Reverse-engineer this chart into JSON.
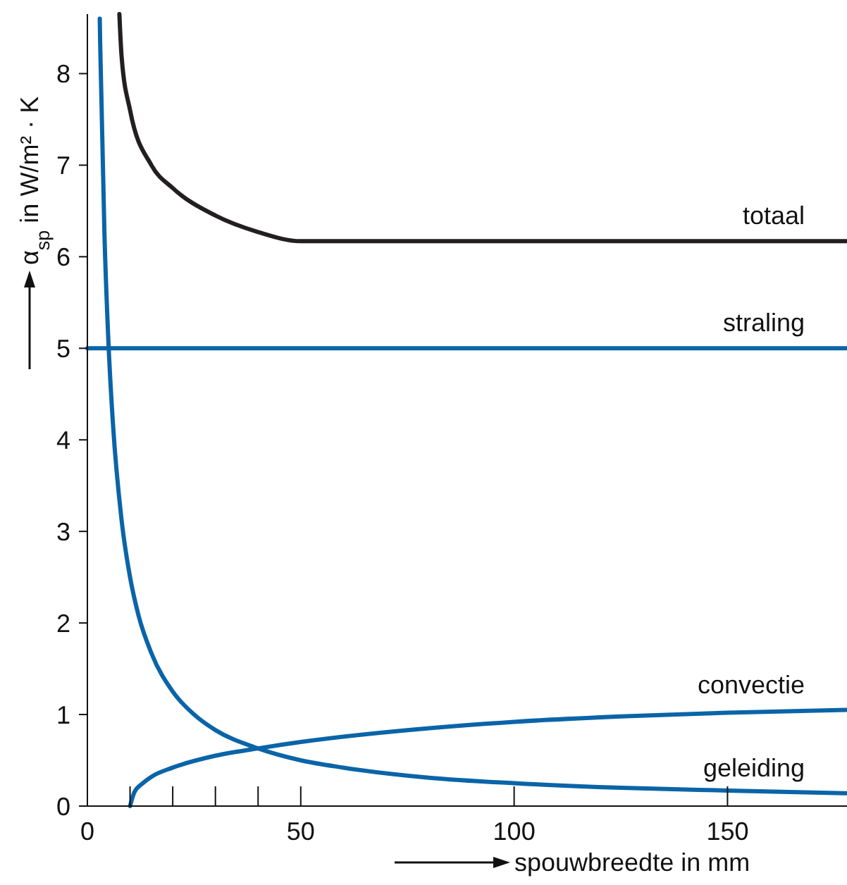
{
  "chart_data": {
    "type": "line",
    "xlabel": "spouwbreedte in mm",
    "ylabel": "α$_{sp}$ in W/m² · K",
    "xlim": [
      0,
      178
    ],
    "ylim": [
      0,
      8.65
    ],
    "xticks": [
      0,
      {
        "value": 10,
        "label": null
      },
      {
        "value": 20,
        "label": null
      },
      {
        "value": 30,
        "label": null
      },
      {
        "value": 40,
        "label": null
      },
      50,
      100,
      150
    ],
    "yticks": [
      0,
      1,
      2,
      3,
      4,
      5,
      6,
      7,
      8
    ],
    "grid": false,
    "line_style": "solid",
    "series": [
      {
        "name": "totaal",
        "color": "#231f20",
        "x": [
          7.5,
          8,
          10,
          15,
          20,
          30,
          40,
          50,
          178
        ],
        "values": [
          8.65,
          8.2,
          7.6,
          7.0,
          6.75,
          6.45,
          6.27,
          6.17,
          6.17
        ]
      },
      {
        "name": "straling",
        "color": "#0a64a8",
        "x": [
          0,
          178
        ],
        "values": [
          5,
          5
        ]
      },
      {
        "name": "convectie",
        "color": "#0a64a8",
        "x": [
          10,
          11,
          13,
          15,
          20,
          30,
          40,
          50,
          75,
          100,
          125,
          150,
          178
        ],
        "values": [
          0,
          0.15,
          0.25,
          0.32,
          0.42,
          0.55,
          0.63,
          0.7,
          0.83,
          0.92,
          0.98,
          1.02,
          1.05
        ]
      },
      {
        "name": "geleiding",
        "color": "#0a64a8",
        "x": [
          2.9,
          3,
          4,
          5,
          6,
          8,
          10,
          12,
          15,
          20,
          25,
          30,
          40,
          50,
          60,
          80,
          100,
          125,
          150,
          178
        ],
        "values": [
          8.6,
          8.33,
          6.25,
          5,
          4.17,
          3.13,
          2.5,
          2.08,
          1.67,
          1.25,
          1.0,
          0.83,
          0.63,
          0.5,
          0.42,
          0.31,
          0.25,
          0.2,
          0.17,
          0.14
        ]
      }
    ]
  }
}
